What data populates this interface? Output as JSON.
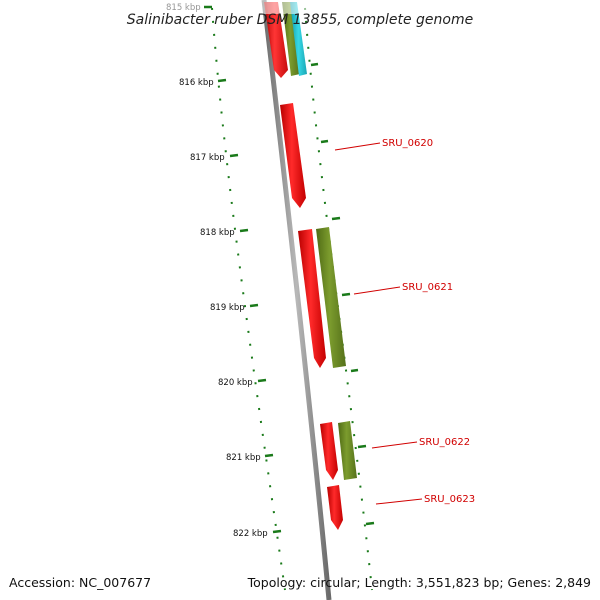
{
  "title": "Salinibacter ruber DSM 13855, complete genome",
  "footer": {
    "accession": "Accession: NC_007677",
    "summary": "Topology: circular; Length: 3,551,823 bp; Genes: 2,849"
  },
  "ticks": [
    "815 kbp",
    "816 kbp",
    "817 kbp",
    "818 kbp",
    "819 kbp",
    "820 kbp",
    "821 kbp",
    "822 kbp"
  ],
  "gene_labels": [
    "SRU_0620",
    "SRU_0621",
    "SRU_0622",
    "SRU_0623"
  ],
  "colors": {
    "cds": "#ee1111",
    "gene": "#6b8c23",
    "rna": "#22c6d6",
    "backbone": "#8a8a8a",
    "tick": "#1a7a1a",
    "label": "#d10000"
  }
}
